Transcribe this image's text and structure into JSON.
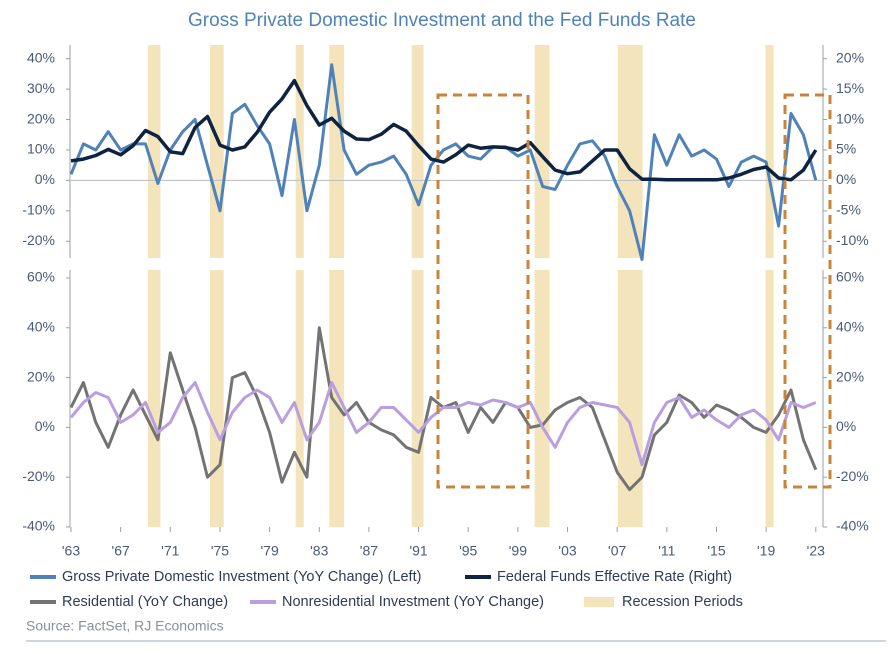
{
  "title": "Gross Private Domestic Investment and the Fed Funds Rate",
  "source": "Source: FactSet, RJ Economics",
  "chart_data": [
    {
      "type": "line",
      "x": [
        1963,
        1964,
        1965,
        1966,
        1967,
        1968,
        1969,
        1970,
        1971,
        1972,
        1973,
        1974,
        1975,
        1976,
        1977,
        1978,
        1979,
        1980,
        1981,
        1982,
        1983,
        1984,
        1985,
        1986,
        1987,
        1988,
        1989,
        1990,
        1991,
        1992,
        1993,
        1994,
        1995,
        1996,
        1997,
        1998,
        1999,
        2000,
        2001,
        2002,
        2003,
        2004,
        2005,
        2006,
        2007,
        2008,
        2009,
        2010,
        2011,
        2012,
        2013,
        2014,
        2015,
        2016,
        2017,
        2018,
        2019,
        2020,
        2021,
        2022,
        2023
      ],
      "xlim": [
        1963,
        2023.5
      ],
      "xticks": [
        {
          "value": 1963,
          "label": "'63"
        },
        {
          "value": 1967,
          "label": "'67"
        },
        {
          "value": 1971,
          "label": "'71"
        },
        {
          "value": 1975,
          "label": "'75"
        },
        {
          "value": 1979,
          "label": "'79"
        },
        {
          "value": 1983,
          "label": "'83"
        },
        {
          "value": 1987,
          "label": "'87"
        },
        {
          "value": 1991,
          "label": "'91"
        },
        {
          "value": 1995,
          "label": "'95"
        },
        {
          "value": 1999,
          "label": "'99"
        },
        {
          "value": 2003,
          "label": "'03"
        },
        {
          "value": 2007,
          "label": "'07"
        },
        {
          "value": 2011,
          "label": "'11"
        },
        {
          "value": 2015,
          "label": "'15"
        },
        {
          "value": 2019,
          "label": "'19"
        },
        {
          "value": 2023,
          "label": "'23"
        }
      ],
      "ylim": [
        -25.5,
        44.5
      ],
      "yticks": [
        {
          "value": -20,
          "label": "-20%"
        },
        {
          "value": -10,
          "label": "-10%"
        },
        {
          "value": 0,
          "label": "0%"
        },
        {
          "value": 10,
          "label": "10%"
        },
        {
          "value": 20,
          "label": "20%"
        },
        {
          "value": 30,
          "label": "30%"
        },
        {
          "value": 40,
          "label": "40%"
        }
      ],
      "y2lim": [
        -12.75,
        22.25
      ],
      "y2ticks": [
        {
          "value": -10,
          "label": "-10%"
        },
        {
          "value": -5,
          "label": "-5%"
        },
        {
          "value": 0,
          "label": "0%"
        },
        {
          "value": 5,
          "label": "5%"
        },
        {
          "value": 10,
          "label": "10%"
        },
        {
          "value": 15,
          "label": "15%"
        },
        {
          "value": 20,
          "label": "20%"
        }
      ],
      "recessions": {
        "name": "Recession Periods",
        "color": "#f3e4bc",
        "ranges": [
          [
            1969.2,
            1970.2
          ],
          [
            1974.2,
            1975.3
          ],
          [
            1981.1,
            1981.75
          ],
          [
            1983.8,
            1985.0
          ],
          [
            1990.45,
            1991.4
          ],
          [
            2000.35,
            2001.55
          ],
          [
            2007.05,
            2009.05
          ],
          [
            2018.95,
            2019.6
          ]
        ]
      },
      "series": [
        {
          "name": "Gross Private Domestic Investment (YoY Change) (Left)",
          "color": "#4f82b8",
          "values": [
            2,
            12,
            10,
            16,
            10,
            12,
            12,
            -1,
            10,
            16,
            20,
            5,
            -10,
            22,
            25,
            18,
            12,
            -5,
            20,
            -10,
            5,
            38,
            10,
            2,
            5,
            6,
            8,
            2,
            -8,
            5,
            10,
            12,
            8,
            7,
            11,
            11,
            8,
            10,
            -2,
            -3,
            5,
            12,
            13,
            8,
            -2,
            -10,
            -26,
            15,
            5,
            15,
            8,
            10,
            7,
            -2,
            6,
            8,
            6,
            -15,
            22,
            15,
            0
          ]
        },
        {
          "name": "Federal Funds Effective Rate (Right)",
          "color": "#0d2340",
          "axis": "y2",
          "values": [
            3.2,
            3.5,
            4.1,
            5.1,
            4.2,
            5.7,
            8.2,
            7.2,
            4.7,
            4.4,
            8.7,
            10.5,
            5.8,
            5.0,
            5.5,
            7.9,
            11.2,
            13.4,
            16.4,
            12.3,
            9.1,
            10.2,
            8.1,
            6.8,
            6.7,
            7.6,
            9.2,
            8.1,
            5.7,
            3.5,
            3.0,
            4.2,
            5.8,
            5.3,
            5.5,
            5.4,
            5.0,
            6.2,
            3.9,
            1.7,
            1.1,
            1.4,
            3.2,
            5.0,
            5.0,
            1.9,
            0.2,
            0.2,
            0.1,
            0.1,
            0.1,
            0.1,
            0.1,
            0.4,
            1.0,
            1.8,
            2.2,
            0.4,
            0.1,
            1.7,
            5.0
          ]
        }
      ]
    },
    {
      "type": "line",
      "x": [
        1963,
        1964,
        1965,
        1966,
        1967,
        1968,
        1969,
        1970,
        1971,
        1972,
        1973,
        1974,
        1975,
        1976,
        1977,
        1978,
        1979,
        1980,
        1981,
        1982,
        1983,
        1984,
        1985,
        1986,
        1987,
        1988,
        1989,
        1990,
        1991,
        1992,
        1993,
        1994,
        1995,
        1996,
        1997,
        1998,
        1999,
        2000,
        2001,
        2002,
        2003,
        2004,
        2005,
        2006,
        2007,
        2008,
        2009,
        2010,
        2011,
        2012,
        2013,
        2014,
        2015,
        2016,
        2017,
        2018,
        2019,
        2020,
        2021,
        2022,
        2023
      ],
      "xlim": [
        1963,
        2023.5
      ],
      "ylim": [
        -40,
        63.2
      ],
      "yticks": [
        {
          "value": -40,
          "label": "-40%"
        },
        {
          "value": -20,
          "label": "-20%"
        },
        {
          "value": 0,
          "label": "0%"
        },
        {
          "value": 20,
          "label": "20%"
        },
        {
          "value": 40,
          "label": "40%"
        },
        {
          "value": 60,
          "label": "60%"
        }
      ],
      "series": [
        {
          "name": "Residential (YoY Change)",
          "color": "#737373",
          "values": [
            8,
            18,
            2,
            -8,
            5,
            15,
            5,
            -5,
            30,
            15,
            0,
            -20,
            -15,
            20,
            22,
            12,
            -2,
            -22,
            -10,
            -20,
            40,
            12,
            5,
            10,
            2,
            -1,
            -3,
            -8,
            -10,
            12,
            8,
            10,
            -2,
            8,
            2,
            10,
            8,
            0,
            1,
            7,
            10,
            12,
            8,
            -5,
            -18,
            -25,
            -20,
            -3,
            2,
            13,
            10,
            4,
            9,
            7,
            4,
            0,
            -2,
            5,
            15,
            -5,
            -17
          ]
        },
        {
          "name": "Nonresidential Investment (YoY Change)",
          "color": "#b99ee0",
          "values": [
            4,
            10,
            14,
            12,
            2,
            5,
            10,
            -2,
            2,
            12,
            18,
            6,
            -5,
            6,
            12,
            15,
            12,
            2,
            10,
            -5,
            2,
            18,
            8,
            -2,
            2,
            8,
            8,
            3,
            -2,
            4,
            8,
            8,
            10,
            9,
            11,
            10,
            8,
            10,
            0,
            -8,
            2,
            8,
            10,
            9,
            8,
            2,
            -15,
            2,
            10,
            12,
            4,
            7,
            3,
            0,
            5,
            7,
            3,
            -5,
            10,
            8,
            10
          ]
        }
      ]
    }
  ]
}
